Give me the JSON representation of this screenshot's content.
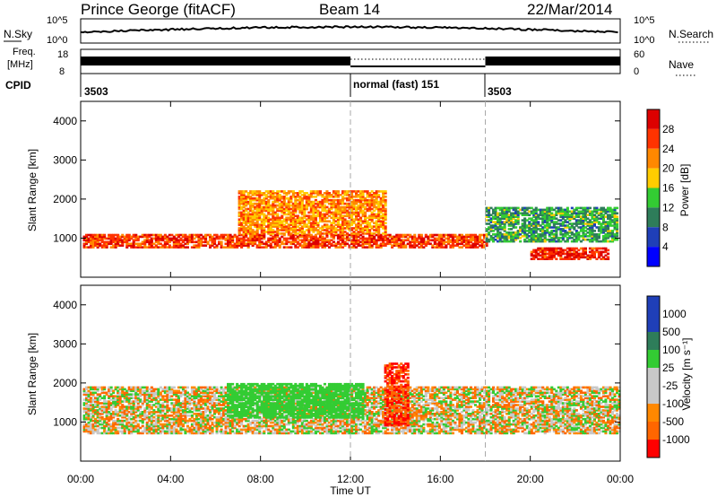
{
  "header": {
    "station": "Prince George (fitACF)",
    "beam": "Beam 14",
    "date": "22/Mar/2014"
  },
  "noise_panel": {
    "left_label": "N.Sky",
    "right_label": "N.Search",
    "left_ticks": [
      "10^5",
      "10^0"
    ],
    "right_ticks": [
      "10^5",
      "10^0"
    ]
  },
  "freq_panel": {
    "left_label_1": "Freq.",
    "left_label_2": "[MHz]",
    "left_ticks": [
      "18",
      "8"
    ],
    "right_label": "Nave",
    "right_ticks": [
      "60",
      "0"
    ]
  },
  "cpid": {
    "label": "CPID",
    "segments": [
      {
        "label": "3503",
        "start_hour": 0
      },
      {
        "label": "normal (fast) 151",
        "start_hour": 12
      },
      {
        "label": "3503",
        "start_hour": 18
      }
    ]
  },
  "colors": {
    "power_scale": [
      "#0000ff",
      "#1f3fb8",
      "#2e7d5a",
      "#33cc33",
      "#ffcc00",
      "#ff8800",
      "#ff3300",
      "#dd0000"
    ],
    "velocity_scale": [
      "#1f3fb8",
      "#2e7d5a",
      "#33cc33",
      "#c8c8c8",
      "#c8c8c8",
      "#ff8800",
      "#ff6600",
      "#ff0000"
    ]
  },
  "chart_data": [
    {
      "type": "heatmap",
      "name": "power",
      "ylabel": "Slant Range [km]",
      "ylim": [
        0,
        4500
      ],
      "yticks": [
        1000,
        2000,
        3000,
        4000
      ],
      "xlim": [
        0,
        24
      ],
      "colorbar": {
        "label": "Power [dB]",
        "range": [
          0,
          32
        ],
        "tick_values": [
          4,
          8,
          12,
          16,
          20,
          24,
          28
        ],
        "tick_labels": [
          "4",
          "8",
          "12",
          "16",
          "20",
          "24",
          "28"
        ]
      },
      "echo_bands": [
        {
          "hour_start": 0.1,
          "hour_end": 18.0,
          "range_low_km": 750,
          "range_high_km": 1100,
          "power_db": 26
        },
        {
          "hour_start": 7.0,
          "hour_end": 13.5,
          "range_low_km": 1100,
          "range_high_km": 2200,
          "power_db": 22
        },
        {
          "hour_start": 18.0,
          "hour_end": 23.9,
          "range_low_km": 900,
          "range_high_km": 1800,
          "power_db": 12
        },
        {
          "hour_start": 20.0,
          "hour_end": 23.5,
          "range_low_km": 450,
          "range_high_km": 750,
          "power_db": 28
        }
      ]
    },
    {
      "type": "heatmap",
      "name": "velocity",
      "ylabel": "Slant Range [km]",
      "ylim": [
        0,
        4500
      ],
      "yticks": [
        1000,
        2000,
        3000,
        4000
      ],
      "xlim": [
        0,
        24
      ],
      "xlabel": "Time UT",
      "xticks": [
        0,
        4,
        8,
        12,
        16,
        20,
        24
      ],
      "xtick_labels": [
        "00:00",
        "04:00",
        "08:00",
        "12:00",
        "16:00",
        "20:00",
        "00:00"
      ],
      "colorbar": {
        "label": "Velocity [m s⁻¹]",
        "tick_labels": [
          "1000",
          "500",
          "100",
          "25",
          "-25",
          "-100",
          "-500",
          "-1000"
        ]
      },
      "echo_bands": [
        {
          "hour_start": 0.1,
          "hour_end": 24.0,
          "range_low_km": 700,
          "range_high_km": 1900,
          "velocity_ms": 0
        },
        {
          "hour_start": 6.5,
          "hour_end": 12.5,
          "range_low_km": 1100,
          "range_high_km": 2000,
          "velocity_ms": 300
        },
        {
          "hour_start": 13.5,
          "hour_end": 14.5,
          "range_low_km": 900,
          "range_high_km": 2500,
          "velocity_ms": -500
        }
      ]
    }
  ]
}
